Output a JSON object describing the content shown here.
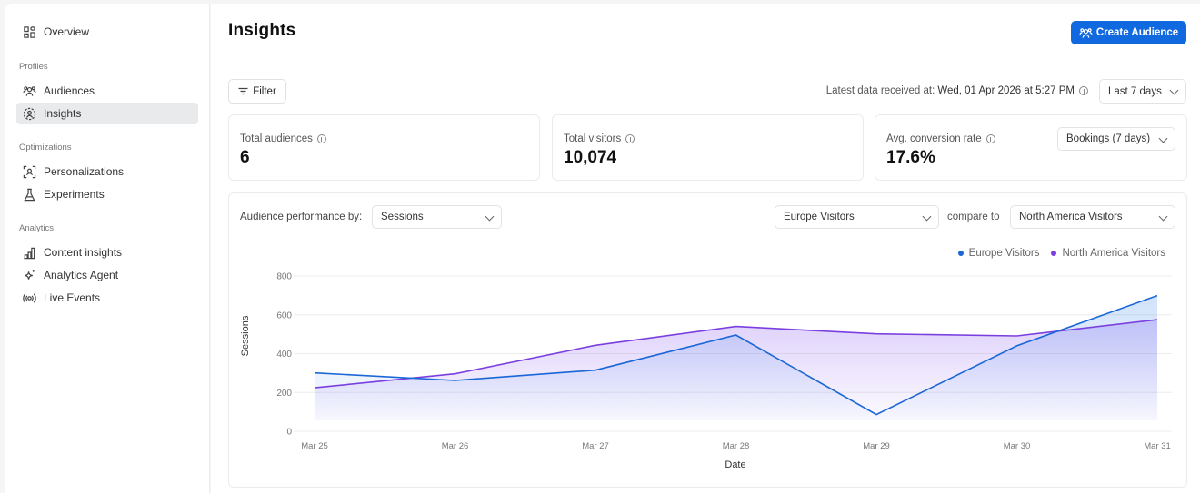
{
  "sidebar": {
    "items": [
      {
        "label": "Overview",
        "icon": "grid-icon"
      },
      {
        "section": "Profiles"
      },
      {
        "label": "Audiences",
        "icon": "users-icon"
      },
      {
        "label": "Insights",
        "icon": "user-circle-dashed-icon",
        "active": true
      },
      {
        "section": "Optimizations"
      },
      {
        "label": "Personalizations",
        "icon": "user-focus-icon"
      },
      {
        "label": "Experiments",
        "icon": "flask-icon"
      },
      {
        "section": "Analytics"
      },
      {
        "label": "Content insights",
        "icon": "bar-chart-icon"
      },
      {
        "label": "Analytics Agent",
        "icon": "sparkle-icon"
      },
      {
        "label": "Live Events",
        "icon": "broadcast-icon"
      }
    ]
  },
  "header": {
    "title": "Insights",
    "create_button": "Create Audience"
  },
  "toolbar": {
    "filter_label": "Filter",
    "latest_label": "Latest data received at:",
    "latest_value": "Wed, 01 Apr 2026 at 5:27 PM",
    "range_select": "Last 7 days"
  },
  "stats": [
    {
      "label": "Total audiences",
      "value": "6"
    },
    {
      "label": "Total visitors",
      "value": "10,074"
    },
    {
      "label": "Avg. conversion rate",
      "value": "17.6%",
      "select": "Bookings (7 days)"
    }
  ],
  "performance": {
    "label": "Audience performance by:",
    "metric_select": "Sessions",
    "audience_select": "Europe Visitors",
    "compare_label": "compare to",
    "compare_select": "North America Visitors"
  },
  "colors": {
    "primary": "#1169e0",
    "europe": "#1a66d6",
    "north_america": "#7b3fe0"
  },
  "chart_data": {
    "type": "area",
    "title": "",
    "xlabel": "Date",
    "ylabel": "Sessions",
    "categories": [
      "Mar 25",
      "Mar 26",
      "Mar 27",
      "Mar 28",
      "Mar 29",
      "Mar 30",
      "Mar 31"
    ],
    "series": [
      {
        "name": "Europe Visitors",
        "values": [
          301,
          262,
          315,
          496,
          86,
          440,
          699
        ]
      },
      {
        "name": "North America Visitors",
        "values": [
          224,
          296,
          443,
          540,
          502,
          491,
          575
        ]
      }
    ],
    "yticks": [
      0,
      200,
      400,
      600,
      800
    ],
    "ylim": [
      0,
      800
    ],
    "grid": true,
    "legend_position": "top-right"
  }
}
